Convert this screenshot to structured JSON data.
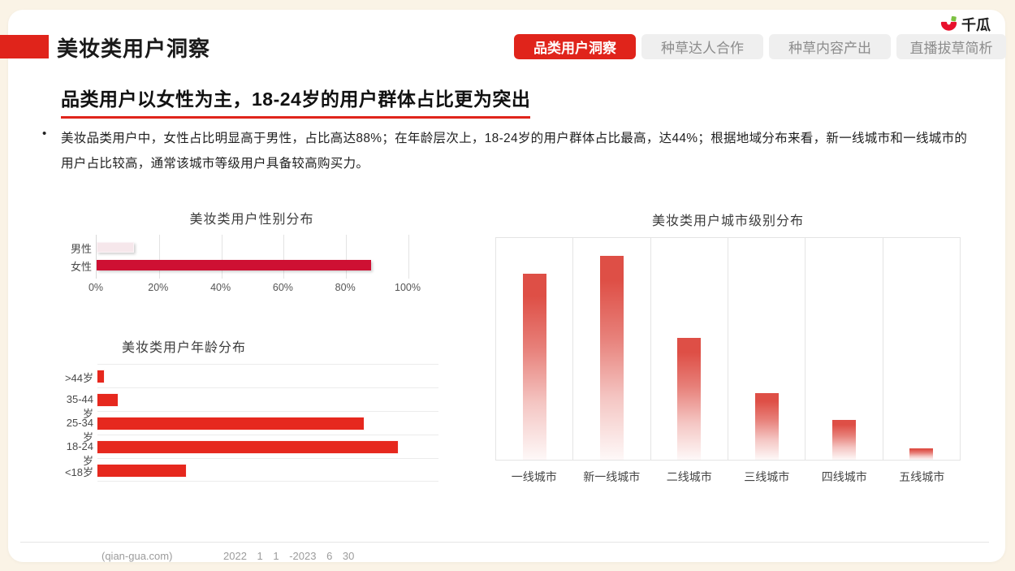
{
  "page": {
    "title": "美妆类用户洞察",
    "logo_text": "千瓜",
    "bullet_marker": "•"
  },
  "tabs": [
    {
      "label": "品类用户洞察",
      "active": true
    },
    {
      "label": "种草达人合作",
      "active": false
    },
    {
      "label": "种草内容产出",
      "active": false
    },
    {
      "label": "直播拔草简析",
      "active": false
    }
  ],
  "headline": "品类用户以女性为主，18-24岁的用户群体占比更为突出",
  "bullet": "美妆品类用户中，女性占比明显高于男性，占比高达88%；在年龄层次上，18-24岁的用户群体占比最高，达44%；根据地域分布来看，新一线城市和一线城市的用户占比较高，通常该城市等级用户具备较高购买力。",
  "colors": {
    "brand_red": "#E0241B",
    "female_bar": "#CE1033",
    "male_bar_fill": "#F6E7EB",
    "age_bar_red": "#E6281E",
    "city_bar_gradient_top": "#DE4F46",
    "page_background": "#FAF3E6",
    "inactive_tab_bg": "#EFEFEF"
  },
  "footer": {
    "source": "(qian-gua.com)",
    "period": "2022 1 1 -2023 6 30"
  },
  "chart_data": [
    {
      "type": "bar",
      "orientation": "horizontal",
      "title": "美妆类用户性别分布",
      "categories": [
        "男性",
        "女性"
      ],
      "values": [
        12,
        88
      ],
      "xlim": [
        0,
        100
      ],
      "x_ticks": [
        "0%",
        "20%",
        "40%",
        "60%",
        "80%",
        "100%"
      ],
      "bar_colors": [
        "#F6E7EB",
        "#CE1033"
      ],
      "grid": "vertical"
    },
    {
      "type": "bar",
      "orientation": "horizontal",
      "title": "美妆类用户年龄分布",
      "categories": [
        ">44岁",
        "35-44岁",
        "25-34岁",
        "18-24岁",
        "<18岁"
      ],
      "values": [
        1,
        3,
        39,
        44,
        13
      ],
      "xlim": [
        0,
        50
      ],
      "axis": "hidden",
      "grid": "row-separators"
    },
    {
      "type": "bar",
      "orientation": "vertical",
      "title": "美妆类用户城市级别分布",
      "categories": [
        "一线城市",
        "新一线城市",
        "二线城市",
        "三线城市",
        "四线城市",
        "五线城市"
      ],
      "values": [
        84,
        92,
        55,
        30,
        18,
        5
      ],
      "ylim": [
        0,
        100
      ],
      "note": "y-axis unlabeled; values read as percent of plot height",
      "grid": "column-separators"
    }
  ]
}
